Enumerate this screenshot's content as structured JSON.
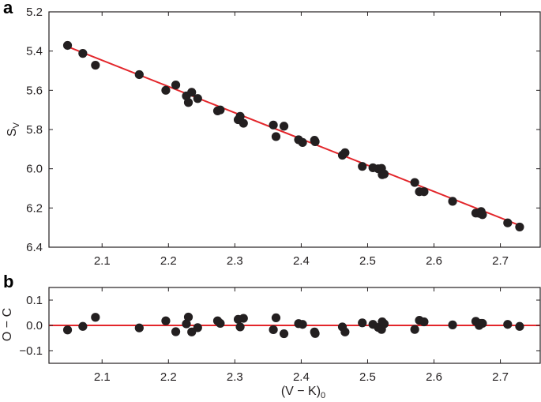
{
  "chart_data": [
    {
      "panel": "a",
      "type": "scatter",
      "ylabel": "S",
      "ylabel_subscript": "V",
      "xlim": [
        2.02,
        2.76
      ],
      "ylim": [
        5.2,
        6.4
      ],
      "y_inverted": true,
      "x_ticks": [
        "2.1",
        "2.2",
        "2.3",
        "2.4",
        "2.5",
        "2.6",
        "2.7"
      ],
      "y_ticks": [
        "5.2",
        "5.4",
        "5.6",
        "5.8",
        "6.0",
        "6.2",
        "6.4"
      ],
      "fit_line": {
        "x": [
          2.05,
          2.73
        ],
        "y": [
          5.38,
          6.29
        ],
        "color": "#e3262b"
      },
      "point_color": "#231f20",
      "points": [
        [
          2.048,
          5.371
        ],
        [
          2.071,
          5.412
        ],
        [
          2.09,
          5.472
        ],
        [
          2.156,
          5.52
        ],
        [
          2.196,
          5.6
        ],
        [
          2.211,
          5.573
        ],
        [
          2.227,
          5.629
        ],
        [
          2.23,
          5.662
        ],
        [
          2.235,
          5.61
        ],
        [
          2.244,
          5.642
        ],
        [
          2.274,
          5.705
        ],
        [
          2.278,
          5.7
        ],
        [
          2.305,
          5.75
        ],
        [
          2.308,
          5.733
        ],
        [
          2.313,
          5.768
        ],
        [
          2.358,
          5.777
        ],
        [
          2.362,
          5.836
        ],
        [
          2.374,
          5.783
        ],
        [
          2.396,
          5.852
        ],
        [
          2.402,
          5.866
        ],
        [
          2.42,
          5.855
        ],
        [
          2.421,
          5.862
        ],
        [
          2.462,
          5.931
        ],
        [
          2.466,
          5.918
        ],
        [
          2.492,
          5.988
        ],
        [
          2.508,
          5.995
        ],
        [
          2.516,
          6.0
        ],
        [
          2.521,
          5.998
        ],
        [
          2.522,
          6.03
        ],
        [
          2.525,
          6.027
        ],
        [
          2.571,
          6.07
        ],
        [
          2.578,
          6.117
        ],
        [
          2.585,
          6.117
        ],
        [
          2.628,
          6.166
        ],
        [
          2.663,
          6.226
        ],
        [
          2.668,
          6.227
        ],
        [
          2.671,
          6.218
        ],
        [
          2.673,
          6.234
        ],
        [
          2.711,
          6.276
        ],
        [
          2.729,
          6.297
        ]
      ]
    },
    {
      "panel": "b",
      "type": "scatter",
      "xlabel": "(V − K)",
      "xlabel_subscript": "0",
      "ylabel": "O − C",
      "xlim": [
        2.02,
        2.76
      ],
      "ylim": [
        -0.15,
        0.15
      ],
      "x_ticks": [
        "2.1",
        "2.2",
        "2.3",
        "2.4",
        "2.5",
        "2.6",
        "2.7"
      ],
      "y_ticks": [
        "0.1",
        "0.0",
        "−0.1"
      ],
      "y_tick_values": [
        0.1,
        0.0,
        -0.1
      ],
      "zero_line": {
        "y": 0.0,
        "color": "#e3262b"
      },
      "point_color": "#231f20",
      "points": [
        [
          2.048,
          -0.018
        ],
        [
          2.071,
          -0.004
        ],
        [
          2.09,
          0.032
        ],
        [
          2.156,
          -0.01
        ],
        [
          2.196,
          0.018
        ],
        [
          2.211,
          -0.025
        ],
        [
          2.227,
          0.006
        ],
        [
          2.23,
          0.033
        ],
        [
          2.235,
          -0.026
        ],
        [
          2.244,
          -0.009
        ],
        [
          2.274,
          0.018
        ],
        [
          2.278,
          0.008
        ],
        [
          2.305,
          0.024
        ],
        [
          2.308,
          -0.006
        ],
        [
          2.313,
          0.028
        ],
        [
          2.358,
          -0.017
        ],
        [
          2.362,
          0.03
        ],
        [
          2.374,
          -0.033
        ],
        [
          2.396,
          0.007
        ],
        [
          2.402,
          0.004
        ],
        [
          2.42,
          -0.026
        ],
        [
          2.421,
          -0.032
        ],
        [
          2.462,
          -0.006
        ],
        [
          2.466,
          -0.026
        ],
        [
          2.492,
          0.01
        ],
        [
          2.508,
          0.004
        ],
        [
          2.516,
          -0.008
        ],
        [
          2.521,
          -0.016
        ],
        [
          2.522,
          0.014
        ],
        [
          2.525,
          0.006
        ],
        [
          2.571,
          -0.016
        ],
        [
          2.578,
          0.02
        ],
        [
          2.585,
          0.014
        ],
        [
          2.628,
          0.002
        ],
        [
          2.663,
          0.016
        ],
        [
          2.668,
          0.0
        ],
        [
          2.671,
          0.008
        ],
        [
          2.673,
          0.008
        ],
        [
          2.711,
          0.004
        ],
        [
          2.729,
          -0.004
        ]
      ]
    }
  ],
  "labels": {
    "panel_a": "a",
    "panel_b": "b"
  },
  "colors": {
    "fit_line": "#e3262b",
    "points": "#231f20",
    "axes": "#231f20"
  }
}
